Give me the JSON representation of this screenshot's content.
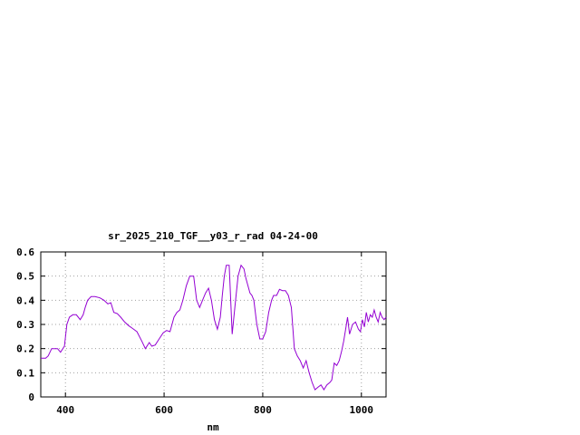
{
  "chart_data": {
    "type": "line",
    "title": "sr_2025_210_TGF__y03_r_rad 04-24-00",
    "xlabel": "nm",
    "ylabel": "",
    "xlim": [
      350,
      1050
    ],
    "ylim": [
      0,
      0.6
    ],
    "xticks": [
      400,
      600,
      800,
      1000
    ],
    "xtick_labels": [
      "400",
      "600",
      "800",
      "1000"
    ],
    "yticks": [
      0,
      0.1,
      0.2,
      0.3,
      0.4,
      0.5,
      0.6
    ],
    "ytick_labels": [
      "0",
      "0.1",
      "0.2",
      "0.3",
      "0.4",
      "0.5",
      "0.6"
    ],
    "grid": true,
    "series": [
      {
        "color": "#9400d3",
        "x": [
          350,
          360,
          365,
          372,
          378,
          384,
          390,
          398,
          403,
          408,
          415,
          422,
          430,
          436,
          440,
          445,
          452,
          460,
          470,
          478,
          486,
          492,
          498,
          505,
          512,
          520,
          528,
          535,
          545,
          555,
          562,
          570,
          575,
          582,
          590,
          598,
          605,
          612,
          620,
          626,
          632,
          638,
          645,
          652,
          660,
          666,
          672,
          678,
          684,
          690,
          696,
          702,
          708,
          714,
          718,
          722,
          726,
          732,
          738,
          744,
          750,
          756,
          762,
          766,
          770,
          774,
          778,
          782,
          788,
          794,
          800,
          806,
          812,
          818,
          822,
          828,
          834,
          840,
          846,
          852,
          858,
          864,
          870,
          876,
          882,
          888,
          894,
          900,
          906,
          912,
          918,
          924,
          930,
          936,
          940,
          945,
          950,
          955,
          960,
          964,
          968,
          972,
          976,
          982,
          988,
          994,
          998,
          1002,
          1006,
          1010,
          1014,
          1018,
          1022,
          1026,
          1030,
          1034,
          1038,
          1042,
          1046,
          1050
        ],
        "y": [
          0.16,
          0.16,
          0.17,
          0.2,
          0.2,
          0.2,
          0.185,
          0.21,
          0.3,
          0.33,
          0.34,
          0.34,
          0.32,
          0.34,
          0.37,
          0.4,
          0.415,
          0.415,
          0.41,
          0.4,
          0.385,
          0.39,
          0.35,
          0.345,
          0.33,
          0.31,
          0.295,
          0.285,
          0.27,
          0.23,
          0.2,
          0.225,
          0.21,
          0.215,
          0.24,
          0.265,
          0.275,
          0.27,
          0.33,
          0.35,
          0.36,
          0.4,
          0.46,
          0.5,
          0.5,
          0.4,
          0.37,
          0.4,
          0.43,
          0.45,
          0.4,
          0.32,
          0.28,
          0.33,
          0.42,
          0.5,
          0.545,
          0.545,
          0.26,
          0.38,
          0.5,
          0.545,
          0.53,
          0.49,
          0.46,
          0.43,
          0.42,
          0.4,
          0.3,
          0.24,
          0.24,
          0.27,
          0.35,
          0.4,
          0.42,
          0.42,
          0.445,
          0.44,
          0.44,
          0.42,
          0.37,
          0.2,
          0.17,
          0.15,
          0.12,
          0.15,
          0.1,
          0.06,
          0.03,
          0.04,
          0.05,
          0.03,
          0.05,
          0.06,
          0.07,
          0.14,
          0.13,
          0.15,
          0.19,
          0.23,
          0.28,
          0.33,
          0.26,
          0.3,
          0.31,
          0.28,
          0.27,
          0.32,
          0.29,
          0.35,
          0.31,
          0.34,
          0.33,
          0.36,
          0.33,
          0.31,
          0.35,
          0.33,
          0.32,
          0.33
        ]
      }
    ]
  }
}
